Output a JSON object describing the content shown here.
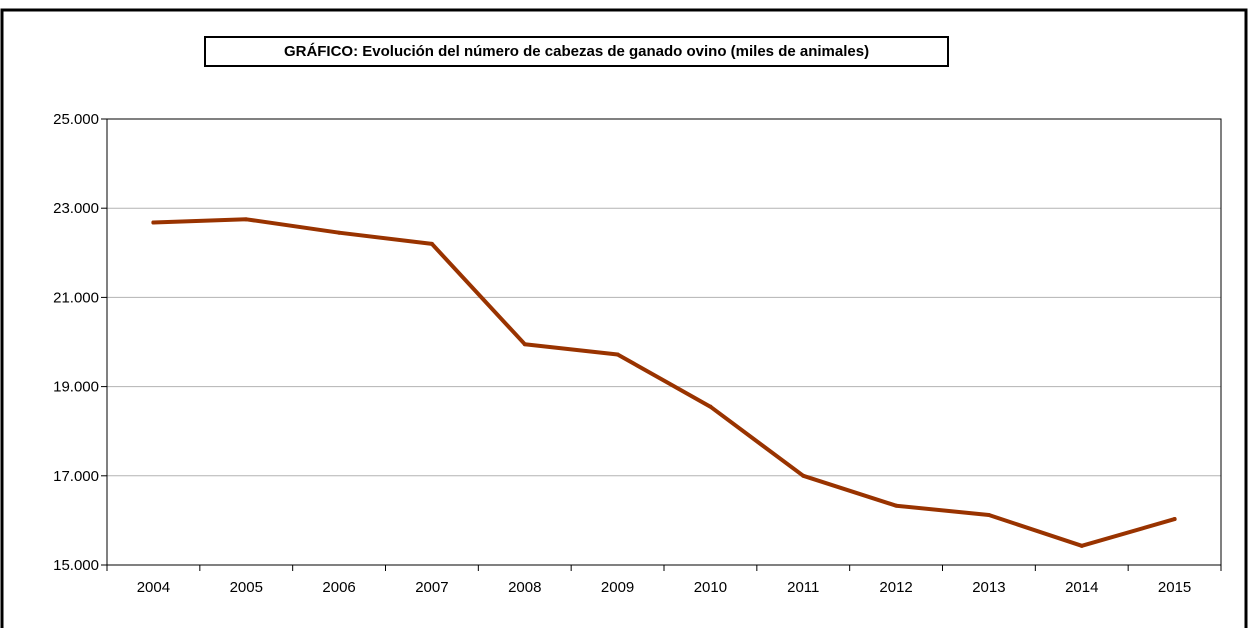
{
  "chart_data": {
    "type": "line",
    "title": "GRÁFICO: Evolución del número de cabezas de ganado ovino (miles de animales)",
    "xlabel": "",
    "ylabel": "",
    "categories": [
      "2004",
      "2005",
      "2006",
      "2007",
      "2008",
      "2009",
      "2010",
      "2011",
      "2012",
      "2013",
      "2014",
      "2015"
    ],
    "series": [
      {
        "values": [
          22680,
          22750,
          22450,
          22200,
          19950,
          19720,
          18550,
          17000,
          16330,
          16120,
          15430,
          16030
        ]
      }
    ],
    "ylim": [
      15000,
      25000
    ],
    "yticks": [
      15000,
      17000,
      19000,
      21000,
      23000,
      25000
    ],
    "ytick_labels": [
      "15.000",
      "17.000",
      "19.000",
      "21.000",
      "23.000",
      "25.000"
    ],
    "grid": true,
    "line_color": "#993300"
  }
}
